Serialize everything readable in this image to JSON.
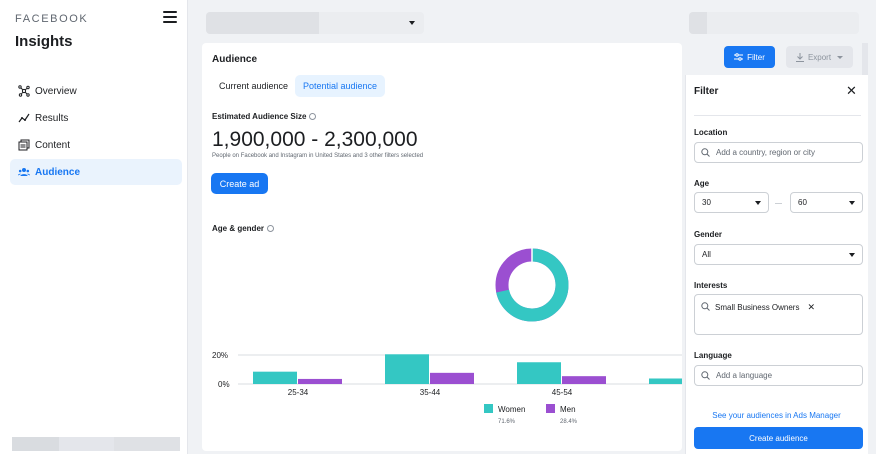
{
  "sidebar": {
    "brand": "FACEBOOK",
    "title": "Insights",
    "items": [
      {
        "label": "Overview",
        "icon": "overview-icon"
      },
      {
        "label": "Results",
        "icon": "results-icon"
      },
      {
        "label": "Content",
        "icon": "content-icon"
      },
      {
        "label": "Audience",
        "icon": "audience-icon",
        "active": true
      }
    ]
  },
  "header": {
    "filter_label": "Filter",
    "export_label": "Export"
  },
  "main": {
    "title": "Audience",
    "tabs": [
      {
        "label": "Current audience",
        "active": false
      },
      {
        "label": "Potential audience",
        "active": true
      }
    ],
    "estimated_label": "Estimated Audience Size",
    "estimated_range": "1,900,000 - 2,300,000",
    "estimated_sub": "People on Facebook and Instagram in United States and 3 other filters selected",
    "create_ad_label": "Create ad",
    "age_gender_title": "Age & gender"
  },
  "chart_data": {
    "type": "bar",
    "categories": [
      "25-34",
      "35-44",
      "45-54"
    ],
    "y_ticks": [
      "20%",
      "0%"
    ],
    "series": [
      {
        "name": "Women",
        "color": "#34c7c3",
        "values": [
          8.5,
          20.5,
          15
        ]
      },
      {
        "name": "Men",
        "color": "#9b4fd1",
        "values": [
          3.5,
          7.7,
          5.4
        ]
      }
    ],
    "ylim": [
      0,
      20
    ],
    "grid": true,
    "legend": [
      {
        "name": "Women",
        "share": "71.6%"
      },
      {
        "name": "Men",
        "share": "28.4%"
      }
    ],
    "donut": {
      "women_share": 71.6,
      "men_share": 28.4
    }
  },
  "filter_panel": {
    "title": "Filter",
    "location": {
      "label": "Location",
      "placeholder": "Add a country, region or city"
    },
    "age": {
      "label": "Age",
      "min": "30",
      "max": "60"
    },
    "gender": {
      "label": "Gender",
      "value": "All"
    },
    "interests": {
      "label": "Interests",
      "chips": [
        "Small Business Owners"
      ]
    },
    "language": {
      "label": "Language",
      "placeholder": "Add a language"
    },
    "link_label": "See your audiences in Ads Manager",
    "create_label": "Create audience"
  },
  "colors": {
    "accent": "#1877f2",
    "women": "#34c7c3",
    "men": "#9b4fd1"
  }
}
